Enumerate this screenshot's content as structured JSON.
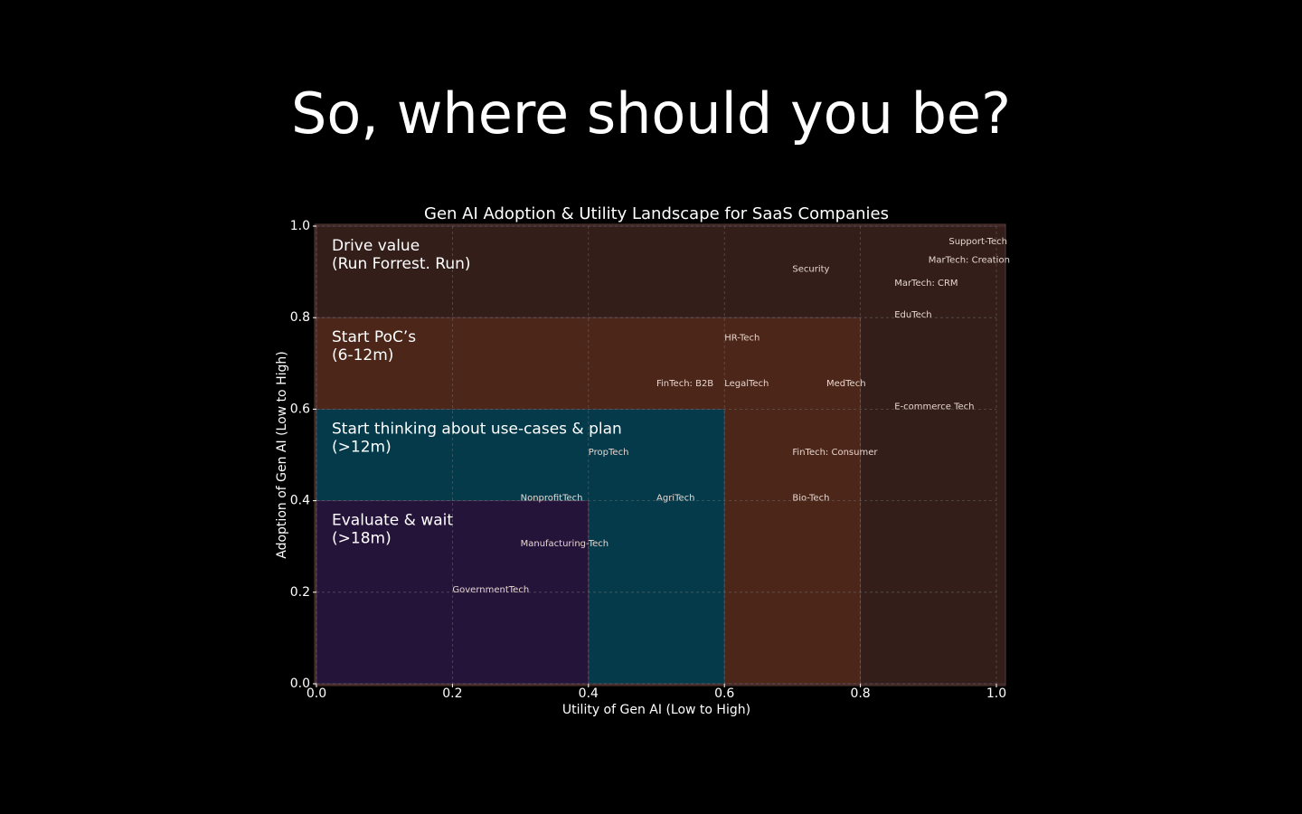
{
  "heading": "So, where should you be?",
  "chart_data": {
    "type": "scatter",
    "title": "Gen AI Adoption & Utility Landscape for SaaS Companies",
    "x_label": "Utility of Gen AI (Low to High)",
    "y_label": "Adoption of Gen AI (Low to High)",
    "xlim": [
      0,
      1
    ],
    "ylim": [
      0,
      1
    ],
    "xticks": [
      {
        "value": 0,
        "label": "0.0"
      },
      0.2,
      0.4,
      0.6,
      0.8,
      {
        "value": 1,
        "label": "1.0"
      }
    ],
    "yticks": [
      {
        "value": 0,
        "label": "0.0"
      },
      0.2,
      0.4,
      0.6,
      0.8,
      {
        "value": 1,
        "label": "1.0"
      }
    ],
    "grid": true,
    "regions": [
      {
        "lines": [
          "Drive value",
          "(Run Forrest. Run)"
        ],
        "x": [
          0,
          1
        ],
        "y": [
          0,
          1
        ],
        "color": "#331e1a"
      },
      {
        "lines": [
          "Start PoC’s",
          "(6-12m)"
        ],
        "x": [
          0,
          0.8
        ],
        "y": [
          0,
          0.8
        ],
        "color": "#4b2619"
      },
      {
        "lines": [
          "Start thinking about use-cases & plan",
          "(>12m)"
        ],
        "x": [
          0,
          0.6
        ],
        "y": [
          0,
          0.6
        ],
        "color": "#053a4b"
      },
      {
        "lines": [
          "Evaluate & wait",
          "(>18m)"
        ],
        "x": [
          0,
          0.4
        ],
        "y": [
          0,
          0.4
        ],
        "color": "#25143a"
      }
    ],
    "points": [
      {
        "label": "Support-Tech",
        "x": 0.93,
        "y": 0.96
      },
      {
        "label": "MarTech: Creation",
        "x": 0.9,
        "y": 0.92
      },
      {
        "label": "Security",
        "x": 0.7,
        "y": 0.9
      },
      {
        "label": "MarTech: CRM",
        "x": 0.85,
        "y": 0.87
      },
      {
        "label": "EduTech",
        "x": 0.85,
        "y": 0.8
      },
      {
        "label": "HR-Tech",
        "x": 0.6,
        "y": 0.75
      },
      {
        "label": "FinTech: B2B",
        "x": 0.5,
        "y": 0.65
      },
      {
        "label": "LegalTech",
        "x": 0.6,
        "y": 0.65
      },
      {
        "label": "MedTech",
        "x": 0.75,
        "y": 0.65
      },
      {
        "label": "E-commerce Tech",
        "x": 0.85,
        "y": 0.6
      },
      {
        "label": "PropTech",
        "x": 0.4,
        "y": 0.5
      },
      {
        "label": "FinTech: Consumer",
        "x": 0.7,
        "y": 0.5
      },
      {
        "label": "NonprofitTech",
        "x": 0.3,
        "y": 0.4
      },
      {
        "label": "AgriTech",
        "x": 0.5,
        "y": 0.4
      },
      {
        "label": "Bio-Tech",
        "x": 0.7,
        "y": 0.4
      },
      {
        "label": "Manufacturing-Tech",
        "x": 0.3,
        "y": 0.3
      },
      {
        "label": "GovernmentTech",
        "x": 0.2,
        "y": 0.2
      }
    ]
  }
}
